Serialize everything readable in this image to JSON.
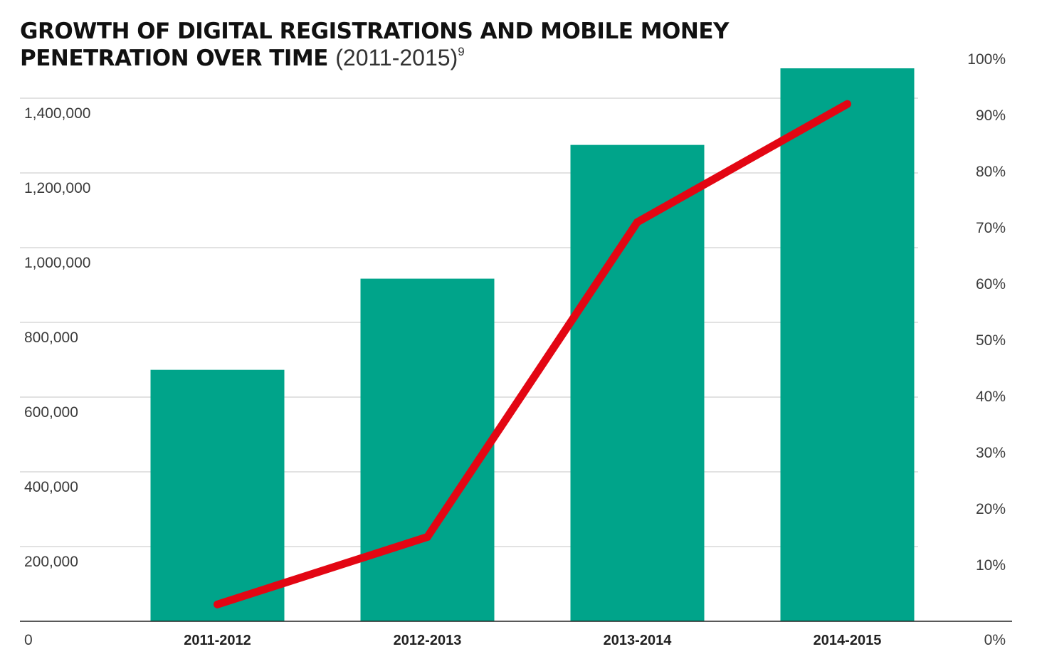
{
  "header": {
    "title_line1": "GROWTH OF DIGITAL REGISTRATIONS AND MOBILE MONEY",
    "title_line2": "PENETRATION OVER TIME",
    "subtitle": "(2011-2015)",
    "footnote": "9"
  },
  "colors": {
    "bar": "#00a48a",
    "line": "#e30613",
    "grid": "#c4c4c4",
    "axis": "#222222"
  },
  "chart_data": {
    "type": "bar",
    "title": "GROWTH OF DIGITAL REGISTRATIONS AND MOBILE MONEY PENETRATION OVER TIME (2011-2015)",
    "categories": [
      "2011-2012",
      "2012-2013",
      "2013-2014",
      "2014-2015"
    ],
    "series": [
      {
        "type": "bar",
        "axis": "left",
        "values": [
          673000,
          917000,
          1275000,
          1480000
        ]
      },
      {
        "type": "line",
        "axis": "right",
        "values": [
          3,
          15,
          71,
          92
        ]
      }
    ],
    "y_left": {
      "ylim": [
        0,
        1400000
      ],
      "ticks": [
        0,
        200000,
        400000,
        600000,
        800000,
        1000000,
        1200000,
        1400000
      ],
      "tick_labels": [
        "0",
        "200,000",
        "400,000",
        "600,000",
        "800,000",
        "1,000,000",
        "1,200,000",
        "1,400,000"
      ]
    },
    "y_right": {
      "ylim": [
        0,
        100
      ],
      "ticks": [
        0,
        10,
        20,
        30,
        40,
        50,
        60,
        70,
        80,
        90,
        100
      ],
      "tick_labels": [
        "0%",
        "10%",
        "20%",
        "30%",
        "40%",
        "50%",
        "60%",
        "70%",
        "80%",
        "90%",
        "100%"
      ]
    },
    "grid": true,
    "legend": "none"
  }
}
